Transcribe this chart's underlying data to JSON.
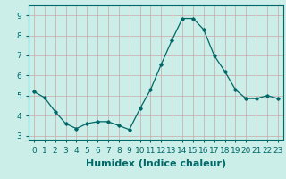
{
  "x": [
    0,
    1,
    2,
    3,
    4,
    5,
    6,
    7,
    8,
    9,
    10,
    11,
    12,
    13,
    14,
    15,
    16,
    17,
    18,
    19,
    20,
    21,
    22,
    23
  ],
  "y": [
    5.2,
    4.9,
    4.2,
    3.6,
    3.35,
    3.6,
    3.7,
    3.7,
    3.5,
    3.3,
    4.35,
    5.3,
    6.55,
    7.75,
    8.85,
    8.85,
    8.3,
    7.0,
    6.2,
    5.3,
    4.85,
    4.85,
    5.0,
    4.85
  ],
  "xlabel": "Humidex (Indice chaleur)",
  "ylim": [
    2.8,
    9.5
  ],
  "xlim": [
    -0.5,
    23.5
  ],
  "yticks": [
    3,
    4,
    5,
    6,
    7,
    8,
    9
  ],
  "xticks": [
    0,
    1,
    2,
    3,
    4,
    5,
    6,
    7,
    8,
    9,
    10,
    11,
    12,
    13,
    14,
    15,
    16,
    17,
    18,
    19,
    20,
    21,
    22,
    23
  ],
  "xtick_labels": [
    "0",
    "1",
    "2",
    "3",
    "4",
    "5",
    "6",
    "7",
    "8",
    "9",
    "10",
    "11",
    "12",
    "13",
    "14",
    "15",
    "16",
    "17",
    "18",
    "19",
    "20",
    "21",
    "22",
    "23"
  ],
  "line_color": "#006868",
  "marker_color": "#006868",
  "bg_color": "#cceee8",
  "grid_color": "#c8a8a8",
  "xlabel_fontsize": 8,
  "tick_fontsize": 6.5
}
